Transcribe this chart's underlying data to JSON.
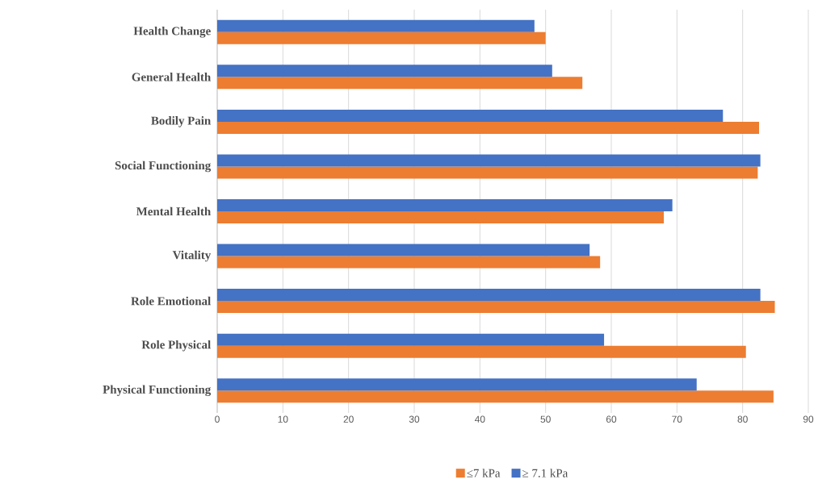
{
  "chart_data": {
    "type": "bar",
    "orientation": "horizontal",
    "categories": [
      "Health Change",
      "General Health",
      "Bodily Pain",
      "Social Functioning",
      "Mental Health",
      "Vitality",
      "Role Emotional",
      "Role Physical",
      "Physical Functioning"
    ],
    "series": [
      {
        "name": "≤7 kPa",
        "color": "#ed7d31",
        "values": [
          50.0,
          55.6,
          82.5,
          82.3,
          68.0,
          58.3,
          84.9,
          80.5,
          84.7
        ]
      },
      {
        "name": "≥ 7.1 kPa",
        "color": "#4472c4",
        "values": [
          48.3,
          51.0,
          77.0,
          82.7,
          69.3,
          56.7,
          82.7,
          58.9,
          73.0
        ]
      }
    ],
    "xlim": [
      0,
      90
    ],
    "xticks": [
      0,
      10,
      20,
      30,
      40,
      50,
      60,
      70,
      80,
      90
    ],
    "grid": "x",
    "legend": "bottom"
  }
}
